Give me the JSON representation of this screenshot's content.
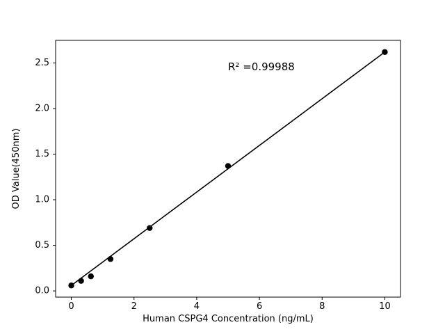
{
  "chart_data": {
    "type": "scatter",
    "title": "",
    "xlabel": "Human CSPG4 Concentration (ng/mL)",
    "ylabel": "OD Value(450nm)",
    "annotation": {
      "text": "R² =0.99988",
      "x": 5.0,
      "y": 2.42
    },
    "x": [
      0,
      0.3125,
      0.625,
      1.25,
      2.5,
      5,
      10
    ],
    "y": [
      0.06,
      0.11,
      0.16,
      0.35,
      0.69,
      1.37,
      2.62
    ],
    "fit_line": {
      "x": [
        0,
        10
      ],
      "y": [
        0.06,
        2.62
      ]
    },
    "xlim": [
      -0.5,
      10.5
    ],
    "ylim": [
      -0.068,
      2.748
    ],
    "xticks": [
      0,
      2,
      4,
      6,
      8,
      10
    ],
    "xtick_labels": [
      "0",
      "2",
      "4",
      "6",
      "8",
      "10"
    ],
    "yticks": [
      0.0,
      0.5,
      1.0,
      1.5,
      2.0,
      2.5
    ],
    "ytick_labels": [
      "0.0",
      "0.5",
      "1.0",
      "1.5",
      "2.0",
      "2.5"
    ],
    "marker_color": "#000000",
    "line_color": "#000000",
    "background_color": "#ffffff",
    "grid": false,
    "legend": null
  }
}
